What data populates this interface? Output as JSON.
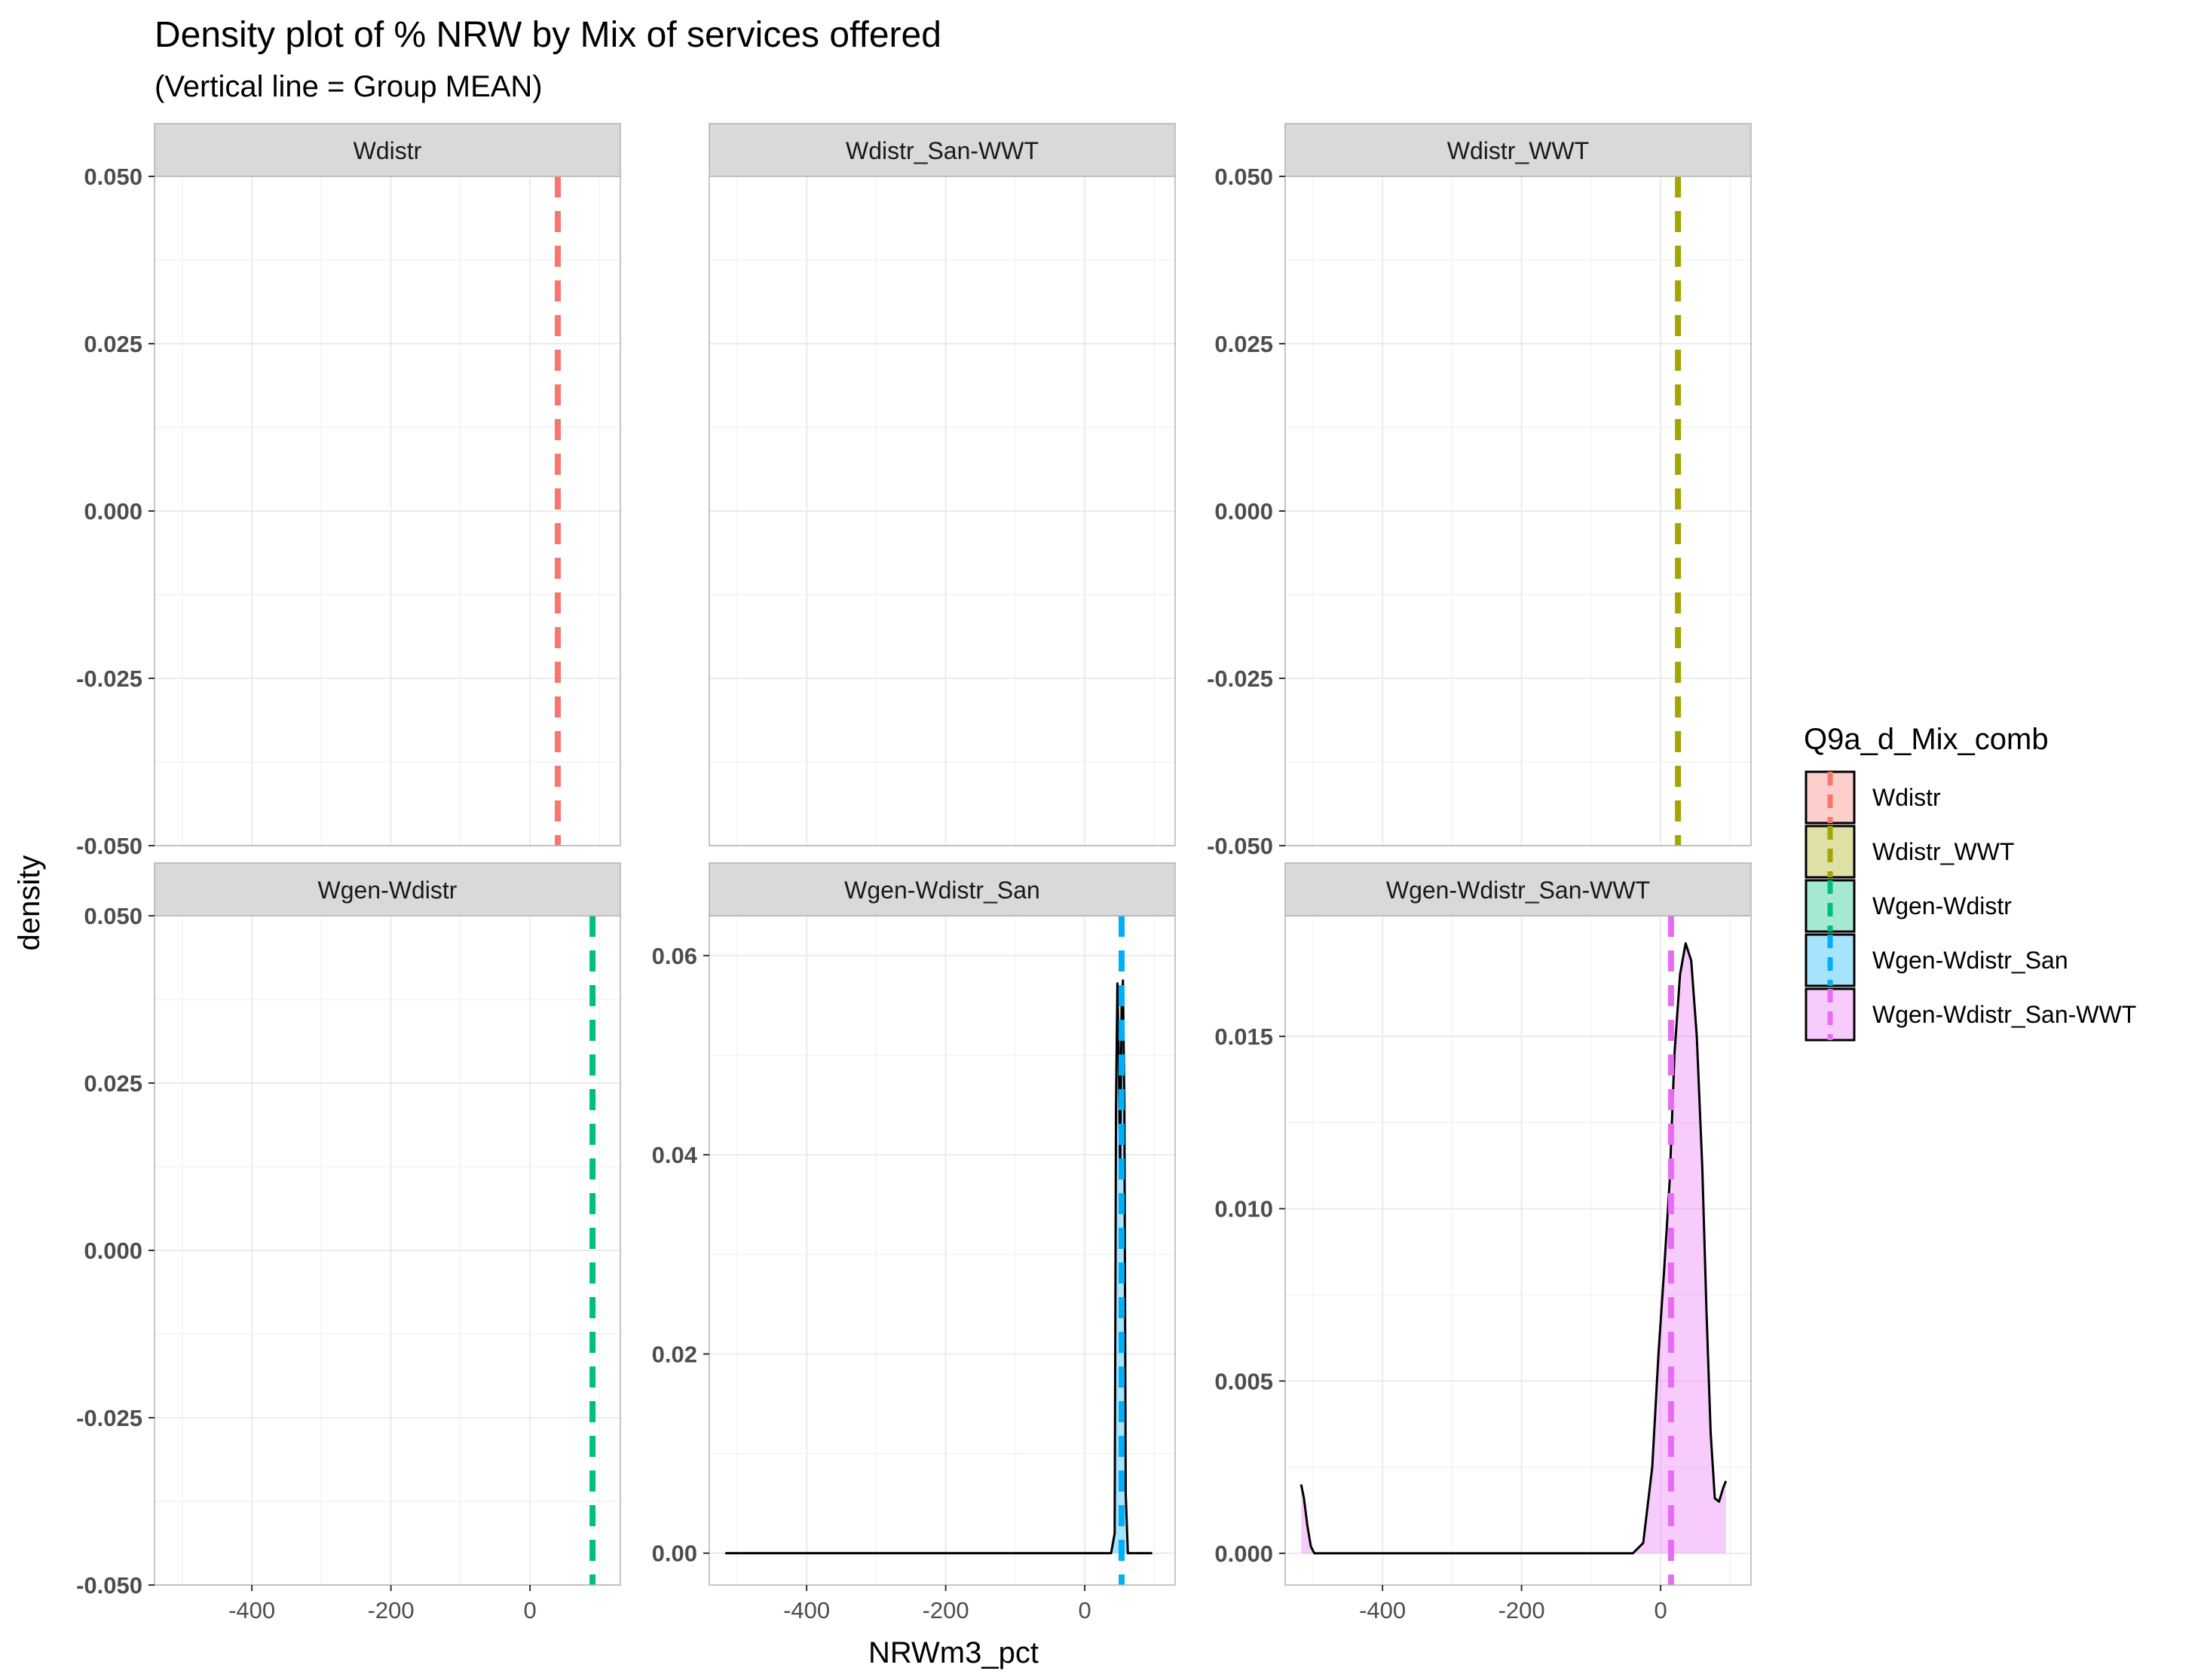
{
  "title": "Density plot of % NRW by Mix of services offered",
  "subtitle": "(Vertical line = Group MEAN)",
  "legend": {
    "title": "Q9a_d_Mix_comb",
    "position": "right",
    "items": [
      {
        "label": "Wdistr",
        "color": "#F8766D"
      },
      {
        "label": "Wdistr_WWT",
        "color": "#A3A500"
      },
      {
        "label": "Wgen-Wdistr",
        "color": "#00BF7D"
      },
      {
        "label": "Wgen-Wdistr_San",
        "color": "#00B0F6"
      },
      {
        "label": "Wgen-Wdistr_San-WWT",
        "color": "#E76BF3"
      }
    ]
  },
  "chart_data": {
    "type": "area",
    "layout": "facet_wrap",
    "ncol": 3,
    "grid": true,
    "xlabel": "NRWm3_pct",
    "ylabel": "density",
    "xlim": [
      -540,
      130
    ],
    "x_ticks": [
      -400,
      -200,
      0
    ],
    "x_tick_labels": [
      "-400",
      "-200",
      "0"
    ],
    "panels": [
      {
        "strip": "Wdistr",
        "color": "#F8766D",
        "mean": 40,
        "ylim": [
          -0.05,
          0.05
        ],
        "y_ticks": [
          -0.05,
          -0.025,
          0,
          0.025,
          0.05
        ],
        "y_tick_labels": [
          "-0.050",
          "-0.025",
          "0.000",
          "0.025",
          "0.050"
        ],
        "show_y_axis": true,
        "show_x_axis": false,
        "density": []
      },
      {
        "strip": "Wdistr_San-WWT",
        "color": null,
        "mean": null,
        "ylim": [
          -0.05,
          0.05
        ],
        "y_ticks": [],
        "y_tick_labels": [],
        "show_y_axis": false,
        "show_x_axis": false,
        "density": []
      },
      {
        "strip": "Wdistr_WWT",
        "color": "#A3A500",
        "mean": 25,
        "ylim": [
          -0.05,
          0.05
        ],
        "y_ticks": [
          -0.05,
          -0.025,
          0,
          0.025,
          0.05
        ],
        "y_tick_labels": [
          "-0.050",
          "-0.025",
          "0.000",
          "0.025",
          "0.050"
        ],
        "show_y_axis": true,
        "show_x_axis": false,
        "density": []
      },
      {
        "strip": "Wgen-Wdistr",
        "color": "#00BF7D",
        "mean": 90,
        "ylim": [
          -0.05,
          0.05
        ],
        "y_ticks": [
          -0.05,
          -0.025,
          0,
          0.025,
          0.05
        ],
        "y_tick_labels": [
          "-0.050",
          "-0.025",
          "0.000",
          "0.025",
          "0.050"
        ],
        "show_y_axis": true,
        "show_x_axis": true,
        "density": []
      },
      {
        "strip": "Wgen-Wdistr_San",
        "color": "#00B0F6",
        "mean": 53,
        "ylim": [
          -0.0032,
          0.064
        ],
        "y_ticks": [
          0,
          0.02,
          0.04,
          0.06
        ],
        "y_tick_labels": [
          "0.00",
          "0.02",
          "0.04",
          "0.06"
        ],
        "show_y_axis": true,
        "show_x_axis": true,
        "density": [
          {
            "x": -517,
            "y": 0
          },
          {
            "x": 38,
            "y": 0
          },
          {
            "x": 43,
            "y": 0.002
          },
          {
            "x": 45,
            "y": 0.045
          },
          {
            "x": 47,
            "y": 0.0572
          },
          {
            "x": 49,
            "y": 0.05
          },
          {
            "x": 51,
            "y": 0.038
          },
          {
            "x": 52,
            "y": 0.047
          },
          {
            "x": 53,
            "y": 0.055
          },
          {
            "x": 55,
            "y": 0.0575
          },
          {
            "x": 57,
            "y": 0.045
          },
          {
            "x": 59,
            "y": 0.006
          },
          {
            "x": 62,
            "y": 0
          },
          {
            "x": 97,
            "y": 0
          }
        ]
      },
      {
        "strip": "Wgen-Wdistr_San-WWT",
        "color": "#E76BF3",
        "mean": 15,
        "ylim": [
          -0.00092,
          0.0185
        ],
        "y_ticks": [
          0,
          0.005,
          0.01,
          0.015
        ],
        "y_tick_labels": [
          "0.000",
          "0.005",
          "0.010",
          "0.015"
        ],
        "show_y_axis": true,
        "show_x_axis": true,
        "density": [
          {
            "x": -517,
            "y": 0.002
          },
          {
            "x": -513,
            "y": 0.0016
          },
          {
            "x": -508,
            "y": 0.0008
          },
          {
            "x": -503,
            "y": 0.0002
          },
          {
            "x": -498,
            "y": 0
          },
          {
            "x": -40,
            "y": 0
          },
          {
            "x": -25,
            "y": 0.0003
          },
          {
            "x": -12,
            "y": 0.0025
          },
          {
            "x": -3,
            "y": 0.0058
          },
          {
            "x": 5,
            "y": 0.0082
          },
          {
            "x": 13,
            "y": 0.0108
          },
          {
            "x": 20,
            "y": 0.0145
          },
          {
            "x": 28,
            "y": 0.0168
          },
          {
            "x": 36,
            "y": 0.0177
          },
          {
            "x": 44,
            "y": 0.0172
          },
          {
            "x": 52,
            "y": 0.015
          },
          {
            "x": 60,
            "y": 0.0112
          },
          {
            "x": 66,
            "y": 0.007
          },
          {
            "x": 72,
            "y": 0.0035
          },
          {
            "x": 78,
            "y": 0.0016
          },
          {
            "x": 84,
            "y": 0.0015
          },
          {
            "x": 90,
            "y": 0.0019
          },
          {
            "x": 94,
            "y": 0.0021
          }
        ]
      }
    ]
  }
}
